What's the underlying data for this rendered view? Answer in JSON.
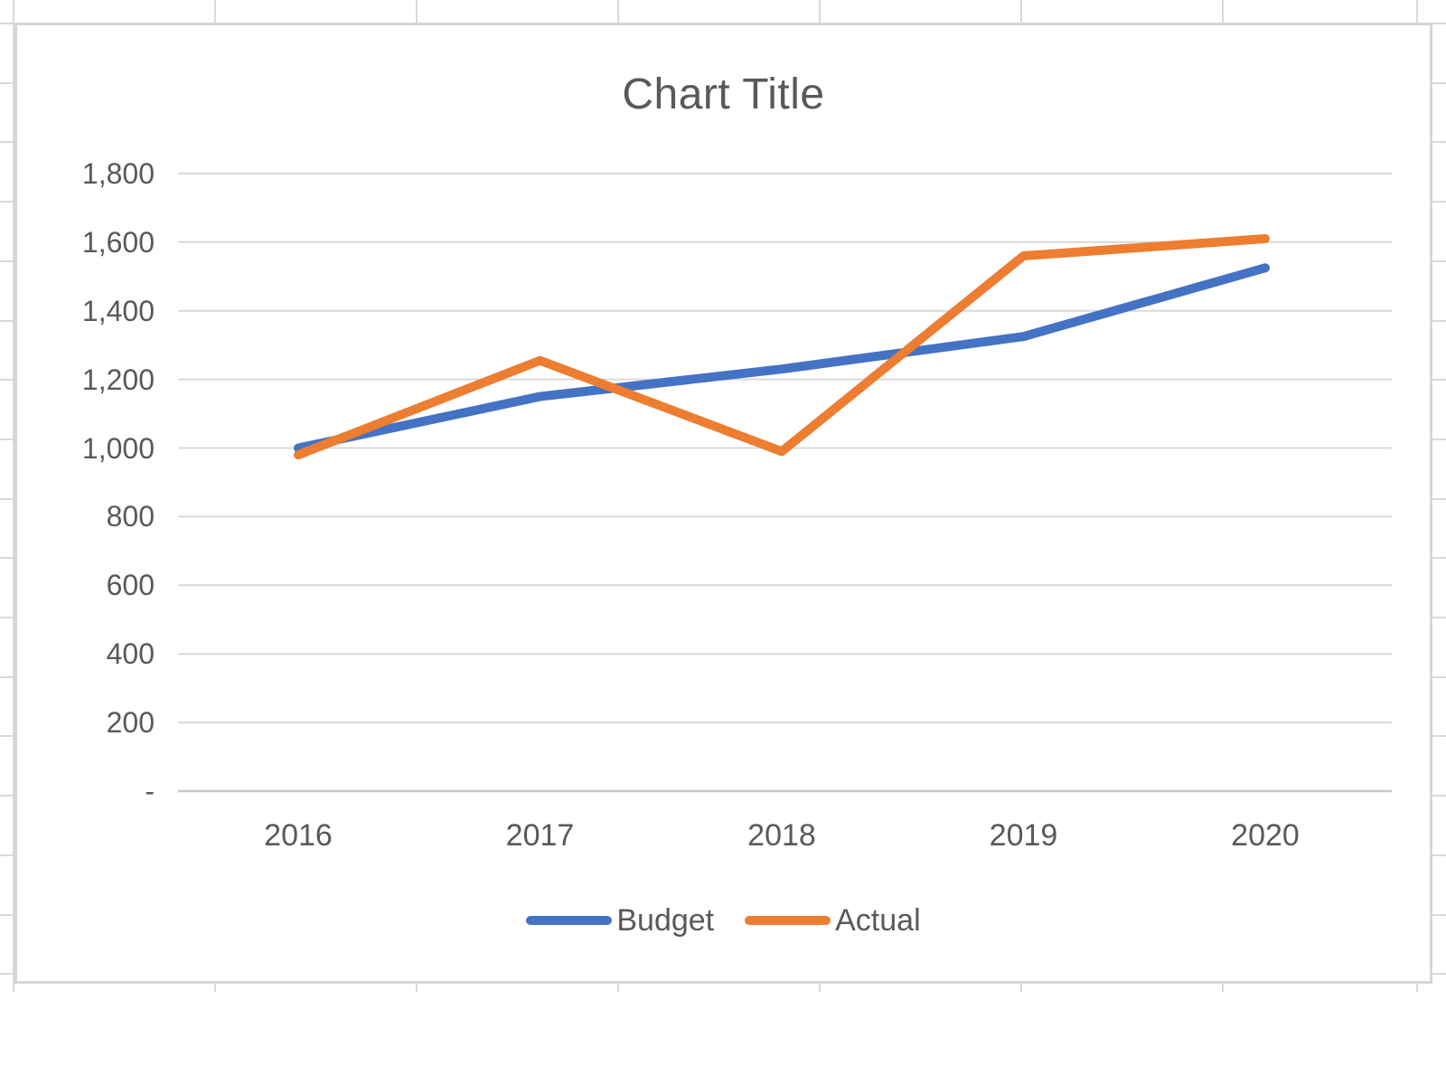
{
  "chart_data": {
    "type": "line",
    "title": "Chart Title",
    "categories": [
      "2016",
      "2017",
      "2018",
      "2019",
      "2020"
    ],
    "series": [
      {
        "name": "Budget",
        "color": "#4472C4",
        "values": [
          1000,
          1150,
          1230,
          1325,
          1525
        ]
      },
      {
        "name": "Actual",
        "color": "#ED7D31",
        "values": [
          980,
          1255,
          990,
          1560,
          1610
        ]
      }
    ],
    "y_axis": {
      "min": 0,
      "max": 1800,
      "step": 200,
      "tick_labels": [
        "-",
        "200",
        "400",
        "600",
        "800",
        "1,000",
        "1,200",
        "1,400",
        "1,600",
        "1,800"
      ]
    },
    "x_axis": {
      "tick_labels": [
        "2016",
        "2017",
        "2018",
        "2019",
        "2020"
      ]
    },
    "grid": true,
    "legend_position": "bottom",
    "colors": {
      "title_text": "#595959",
      "axis_text": "#595959",
      "gridline": "#d9d9d9",
      "axis_line": "#c6c6c6",
      "chart_border": "#d6d6d6"
    }
  }
}
